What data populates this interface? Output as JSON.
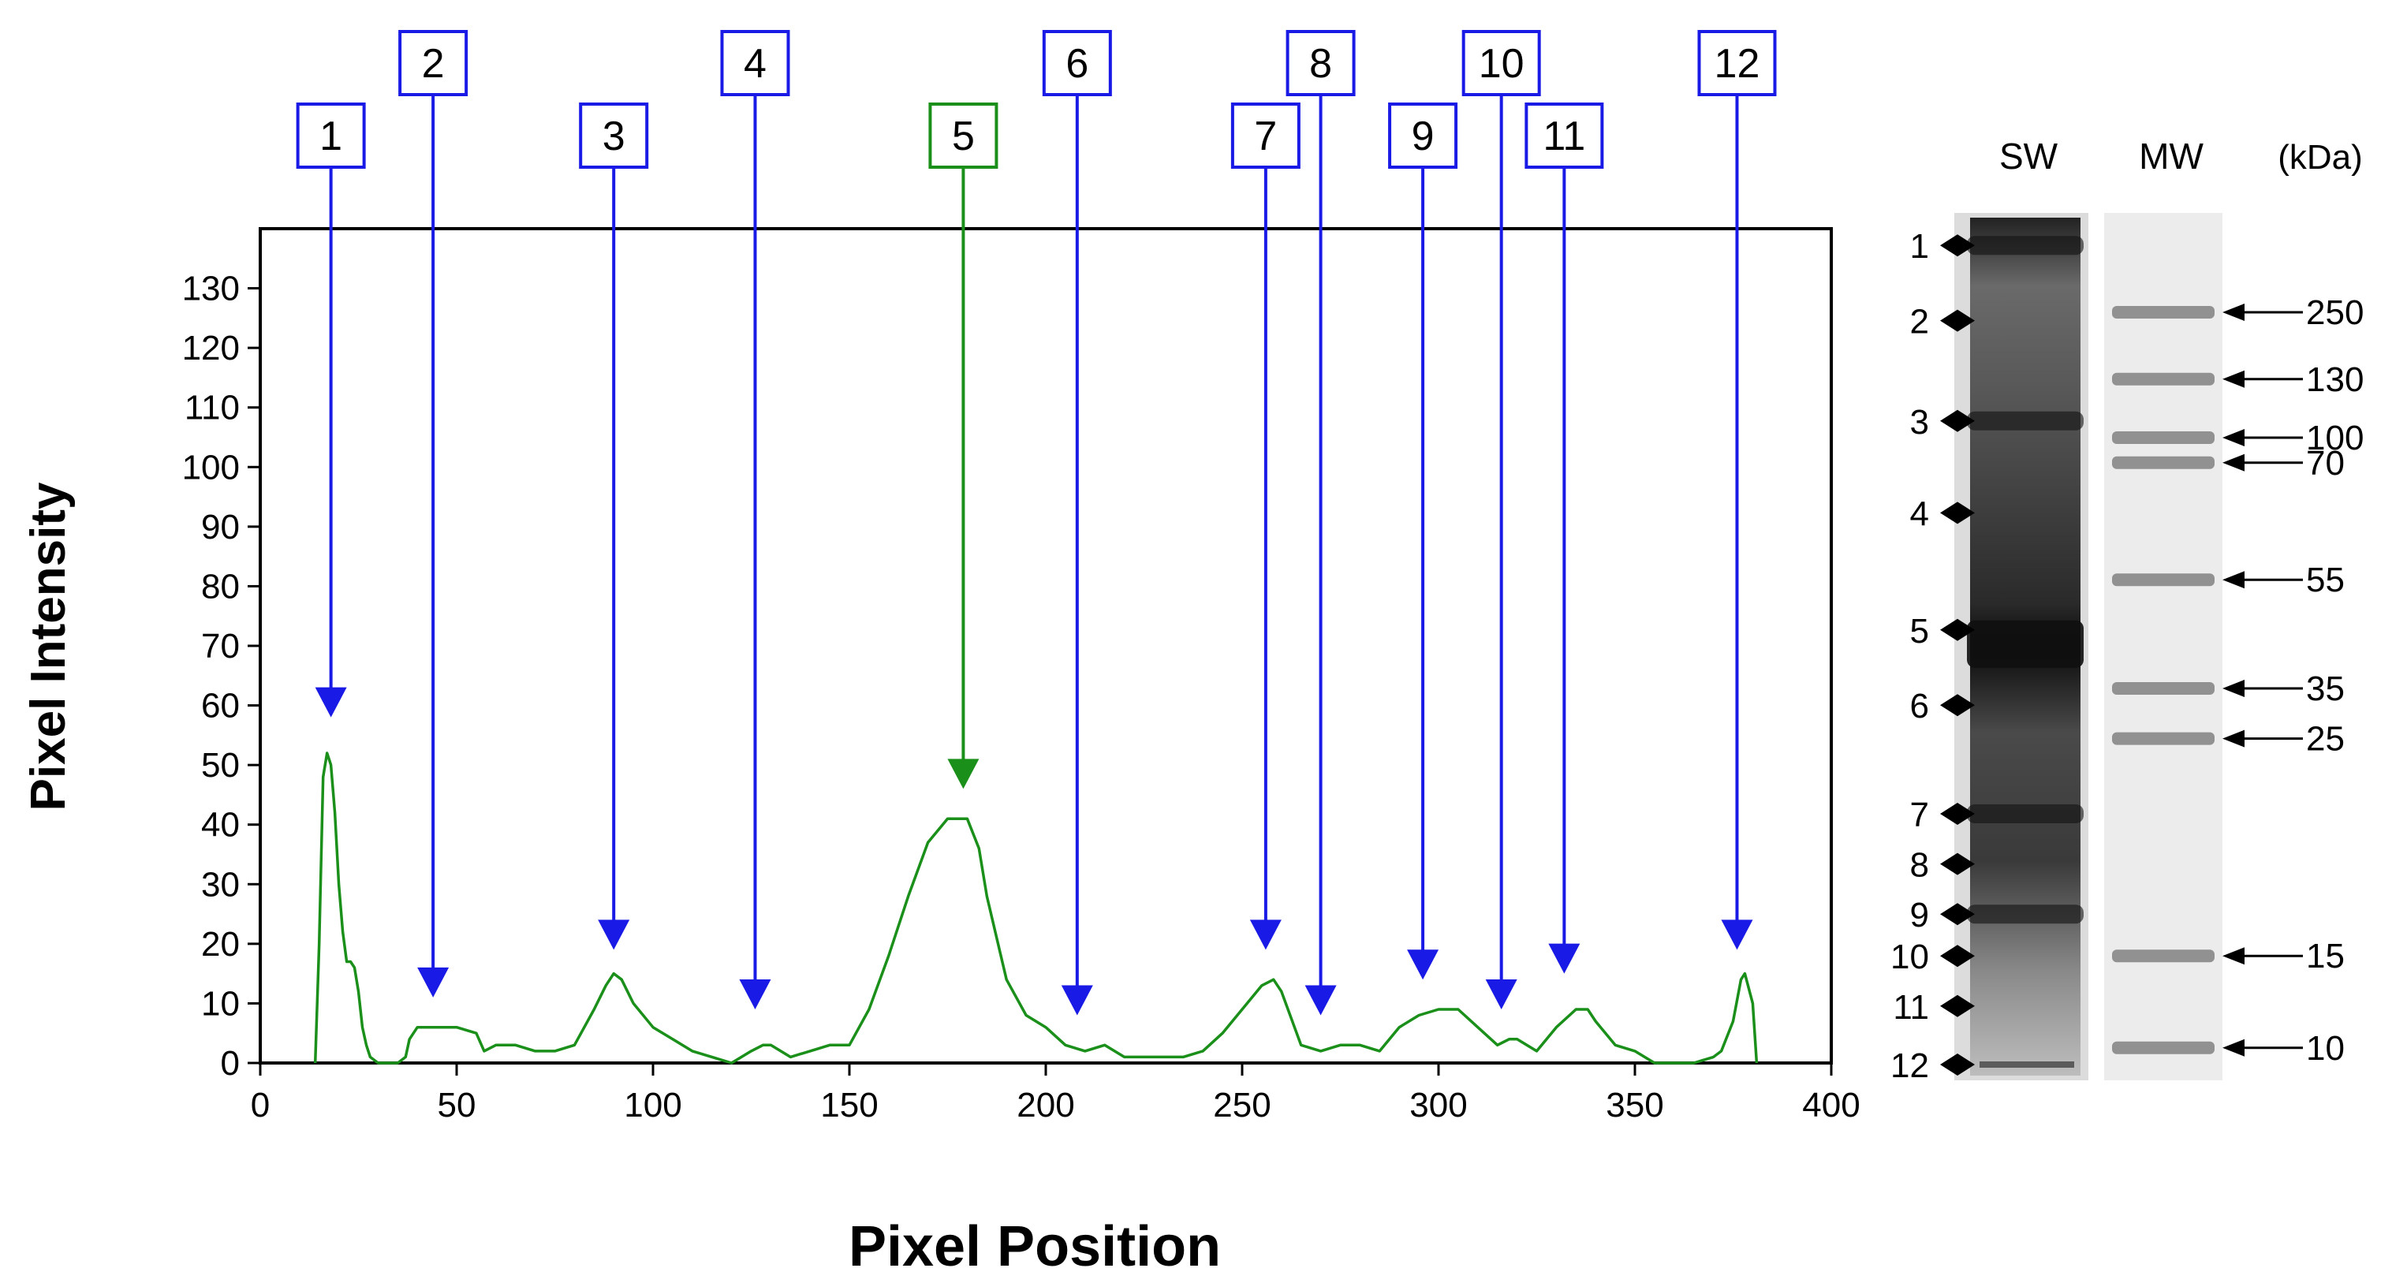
{
  "chart_data": {
    "type": "line",
    "title": "",
    "xlabel": "Pixel Position",
    "ylabel": "Pixel Intensity",
    "xlim": [
      0,
      400
    ],
    "ylim": [
      0,
      140
    ],
    "x_ticks": [
      0,
      50,
      100,
      150,
      200,
      250,
      300,
      350,
      400
    ],
    "y_ticks": [
      0,
      10,
      20,
      30,
      40,
      50,
      60,
      70,
      80,
      90,
      100,
      110,
      120,
      130
    ],
    "grid": false,
    "series": [
      {
        "color": "#1a8f1a",
        "x": [
          14,
          15,
          16,
          17,
          18,
          19,
          20,
          21,
          22,
          23,
          24,
          25,
          26,
          27,
          28,
          30,
          33,
          35,
          37,
          38,
          40,
          45,
          50,
          55,
          57,
          60,
          65,
          70,
          75,
          80,
          85,
          88,
          90,
          92,
          95,
          100,
          105,
          110,
          115,
          120,
          125,
          128,
          130,
          135,
          140,
          145,
          150,
          155,
          160,
          165,
          170,
          175,
          180,
          183,
          185,
          190,
          195,
          200,
          205,
          210,
          215,
          220,
          225,
          230,
          235,
          240,
          245,
          250,
          255,
          258,
          260,
          265,
          270,
          275,
          280,
          285,
          290,
          295,
          300,
          305,
          310,
          315,
          318,
          320,
          325,
          330,
          335,
          338,
          340,
          345,
          350,
          355,
          360,
          365,
          370,
          372,
          375,
          377,
          378,
          380,
          381
        ],
        "y": [
          0,
          20,
          48,
          52,
          50,
          42,
          30,
          22,
          17,
          17,
          16,
          12,
          6,
          3,
          1,
          0,
          0,
          0,
          1,
          4,
          6,
          6,
          6,
          5,
          2,
          3,
          3,
          2,
          2,
          3,
          9,
          13,
          15,
          14,
          10,
          6,
          4,
          2,
          1,
          0,
          2,
          3,
          3,
          1,
          2,
          3,
          3,
          9,
          18,
          28,
          37,
          41,
          41,
          36,
          28,
          14,
          8,
          6,
          3,
          2,
          3,
          1,
          1,
          1,
          1,
          2,
          5,
          9,
          13,
          14,
          12,
          3,
          2,
          3,
          3,
          2,
          6,
          8,
          9,
          9,
          6,
          3,
          4,
          4,
          2,
          6,
          9,
          9,
          7,
          3,
          2,
          0,
          0,
          0,
          1,
          2,
          7,
          14,
          15,
          10,
          0
        ]
      }
    ]
  },
  "peaks": [
    {
      "label": "1",
      "x": 18,
      "tip": 58,
      "box_row": "low",
      "color": "#1a1ae6"
    },
    {
      "label": "2",
      "x": 44,
      "tip": 11,
      "box_row": "high",
      "color": "#1a1ae6"
    },
    {
      "label": "3",
      "x": 90,
      "tip": 19,
      "box_row": "low",
      "color": "#1a1ae6"
    },
    {
      "label": "4",
      "x": 126,
      "tip": 9,
      "box_row": "high",
      "color": "#1a1ae6"
    },
    {
      "label": "5",
      "x": 179,
      "tip": 46,
      "box_row": "low",
      "color": "#1a8f1a"
    },
    {
      "label": "6",
      "x": 208,
      "tip": 8,
      "box_row": "high",
      "color": "#1a1ae6"
    },
    {
      "label": "7",
      "x": 256,
      "tip": 19,
      "box_row": "low",
      "color": "#1a1ae6"
    },
    {
      "label": "8",
      "x": 270,
      "tip": 8,
      "box_row": "high",
      "color": "#1a1ae6"
    },
    {
      "label": "9",
      "x": 296,
      "tip": 14,
      "box_row": "low",
      "color": "#1a1ae6"
    },
    {
      "label": "10",
      "x": 316,
      "tip": 9,
      "box_row": "high",
      "color": "#1a1ae6"
    },
    {
      "label": "11",
      "x": 332,
      "tip": 15,
      "box_row": "low",
      "color": "#1a1ae6"
    },
    {
      "label": "12",
      "x": 376,
      "tip": 19,
      "box_row": "high",
      "color": "#1a1ae6"
    }
  ],
  "gel": {
    "lane_labels": [
      "SW",
      "MW"
    ],
    "unit_label": "(kDa)",
    "band_numbers": [
      "1",
      "2",
      "3",
      "4",
      "5",
      "6",
      "7",
      "8",
      "9",
      "10",
      "11",
      "12"
    ],
    "band_fractions": [
      0.02,
      0.11,
      0.23,
      0.34,
      0.48,
      0.57,
      0.7,
      0.76,
      0.82,
      0.87,
      0.93,
      1.0
    ],
    "markers": [
      {
        "label": "250",
        "fraction": 0.1
      },
      {
        "label": "130",
        "fraction": 0.18
      },
      {
        "label": "100",
        "fraction": 0.25
      },
      {
        "label": "70",
        "fraction": 0.28
      },
      {
        "label": "55",
        "fraction": 0.42
      },
      {
        "label": "35",
        "fraction": 0.55
      },
      {
        "label": "25",
        "fraction": 0.61
      },
      {
        "label": "15",
        "fraction": 0.87
      },
      {
        "label": "10",
        "fraction": 0.98
      }
    ]
  }
}
